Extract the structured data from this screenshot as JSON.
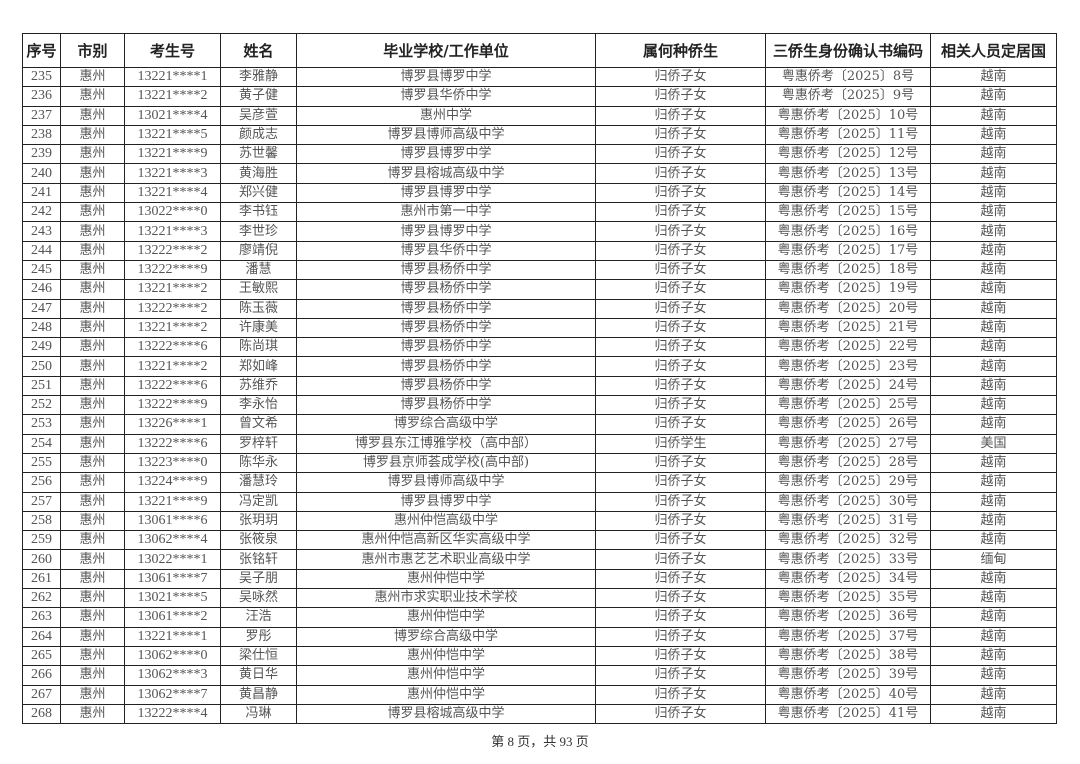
{
  "table": {
    "headers": [
      "序号",
      "市别",
      "考生号",
      "姓名",
      "毕业学校/工作单位",
      "属何种侨生",
      "三侨生身份确认书编码",
      "相关人员定居国"
    ],
    "rows": [
      [
        "235",
        "惠州",
        "13221****1",
        "李雅静",
        "博罗县博罗中学",
        "归侨子女",
        "粤惠侨考〔2025〕8号",
        "越南"
      ],
      [
        "236",
        "惠州",
        "13221****2",
        "黄子健",
        "博罗县华侨中学",
        "归侨子女",
        "粤惠侨考〔2025〕9号",
        "越南"
      ],
      [
        "237",
        "惠州",
        "13021****4",
        "吴彦萱",
        "惠州中学",
        "归侨子女",
        "粤惠侨考〔2025〕10号",
        "越南"
      ],
      [
        "238",
        "惠州",
        "13221****5",
        "颜成志",
        "博罗县博师高级中学",
        "归侨子女",
        "粤惠侨考〔2025〕11号",
        "越南"
      ],
      [
        "239",
        "惠州",
        "13221****9",
        "苏世馨",
        "博罗县博罗中学",
        "归侨子女",
        "粤惠侨考〔2025〕12号",
        "越南"
      ],
      [
        "240",
        "惠州",
        "13221****3",
        "黄海胜",
        "博罗县榕城高级中学",
        "归侨子女",
        "粤惠侨考〔2025〕13号",
        "越南"
      ],
      [
        "241",
        "惠州",
        "13221****4",
        "郑兴健",
        "博罗县博罗中学",
        "归侨子女",
        "粤惠侨考〔2025〕14号",
        "越南"
      ],
      [
        "242",
        "惠州",
        "13022****0",
        "李书钰",
        "惠州市第一中学",
        "归侨子女",
        "粤惠侨考〔2025〕15号",
        "越南"
      ],
      [
        "243",
        "惠州",
        "13221****3",
        "李世珍",
        "博罗县博罗中学",
        "归侨子女",
        "粤惠侨考〔2025〕16号",
        "越南"
      ],
      [
        "244",
        "惠州",
        "13222****2",
        "廖靖倪",
        "博罗县华侨中学",
        "归侨子女",
        "粤惠侨考〔2025〕17号",
        "越南"
      ],
      [
        "245",
        "惠州",
        "13222****9",
        "潘慧",
        "博罗县杨侨中学",
        "归侨子女",
        "粤惠侨考〔2025〕18号",
        "越南"
      ],
      [
        "246",
        "惠州",
        "13221****2",
        "王敏熙",
        "博罗县杨侨中学",
        "归侨子女",
        "粤惠侨考〔2025〕19号",
        "越南"
      ],
      [
        "247",
        "惠州",
        "13222****2",
        "陈玉薇",
        "博罗县杨侨中学",
        "归侨子女",
        "粤惠侨考〔2025〕20号",
        "越南"
      ],
      [
        "248",
        "惠州",
        "13221****2",
        "许康美",
        "博罗县杨侨中学",
        "归侨子女",
        "粤惠侨考〔2025〕21号",
        "越南"
      ],
      [
        "249",
        "惠州",
        "13222****6",
        "陈尚琪",
        "博罗县杨侨中学",
        "归侨子女",
        "粤惠侨考〔2025〕22号",
        "越南"
      ],
      [
        "250",
        "惠州",
        "13221****2",
        "郑如峰",
        "博罗县杨侨中学",
        "归侨子女",
        "粤惠侨考〔2025〕23号",
        "越南"
      ],
      [
        "251",
        "惠州",
        "13222****6",
        "苏维乔",
        "博罗县杨侨中学",
        "归侨子女",
        "粤惠侨考〔2025〕24号",
        "越南"
      ],
      [
        "252",
        "惠州",
        "13222****9",
        "李永怡",
        "博罗县杨侨中学",
        "归侨子女",
        "粤惠侨考〔2025〕25号",
        "越南"
      ],
      [
        "253",
        "惠州",
        "13226****1",
        "曾文希",
        "博罗综合高级中学",
        "归侨子女",
        "粤惠侨考〔2025〕26号",
        "越南"
      ],
      [
        "254",
        "惠州",
        "13222****6",
        "罗梓轩",
        "博罗县东江博雅学校（高中部）",
        "归侨学生",
        "粤惠侨考〔2025〕27号",
        "美国"
      ],
      [
        "255",
        "惠州",
        "13223****0",
        "陈华永",
        "博罗县京师荟成学校(高中部)",
        "归侨子女",
        "粤惠侨考〔2025〕28号",
        "越南"
      ],
      [
        "256",
        "惠州",
        "13224****9",
        "潘慧玲",
        "博罗县博师高级中学",
        "归侨子女",
        "粤惠侨考〔2025〕29号",
        "越南"
      ],
      [
        "257",
        "惠州",
        "13221****9",
        "冯定凯",
        "博罗县博罗中学",
        "归侨子女",
        "粤惠侨考〔2025〕30号",
        "越南"
      ],
      [
        "258",
        "惠州",
        "13061****6",
        "张玥玥",
        "惠州仲恺高级中学",
        "归侨子女",
        "粤惠侨考〔2025〕31号",
        "越南"
      ],
      [
        "259",
        "惠州",
        "13062****4",
        "张筱泉",
        "惠州仲恺高新区华实高级中学",
        "归侨子女",
        "粤惠侨考〔2025〕32号",
        "越南"
      ],
      [
        "260",
        "惠州",
        "13022****1",
        "张铭轩",
        "惠州市惠艺艺术职业高级中学",
        "归侨子女",
        "粤惠侨考〔2025〕33号",
        "缅甸"
      ],
      [
        "261",
        "惠州",
        "13061****7",
        "吴子朋",
        "惠州仲恺中学",
        "归侨子女",
        "粤惠侨考〔2025〕34号",
        "越南"
      ],
      [
        "262",
        "惠州",
        "13021****5",
        "吴咏然",
        "惠州市求实职业技术学校",
        "归侨子女",
        "粤惠侨考〔2025〕35号",
        "越南"
      ],
      [
        "263",
        "惠州",
        "13061****2",
        "汪浩",
        "惠州仲恺中学",
        "归侨子女",
        "粤惠侨考〔2025〕36号",
        "越南"
      ],
      [
        "264",
        "惠州",
        "13221****1",
        "罗彤",
        "博罗综合高级中学",
        "归侨子女",
        "粤惠侨考〔2025〕37号",
        "越南"
      ],
      [
        "265",
        "惠州",
        "13062****0",
        "梁仕恒",
        "惠州仲恺中学",
        "归侨子女",
        "粤惠侨考〔2025〕38号",
        "越南"
      ],
      [
        "266",
        "惠州",
        "13062****3",
        "黄日华",
        "惠州仲恺中学",
        "归侨子女",
        "粤惠侨考〔2025〕39号",
        "越南"
      ],
      [
        "267",
        "惠州",
        "13062****7",
        "黄昌静",
        "惠州仲恺中学",
        "归侨子女",
        "粤惠侨考〔2025〕40号",
        "越南"
      ],
      [
        "268",
        "惠州",
        "13222****4",
        "冯琳",
        "博罗县榕城高级中学",
        "归侨子女",
        "粤惠侨考〔2025〕41号",
        "越南"
      ]
    ]
  },
  "footer": {
    "page_label": "第 8 页，共 93 页"
  }
}
